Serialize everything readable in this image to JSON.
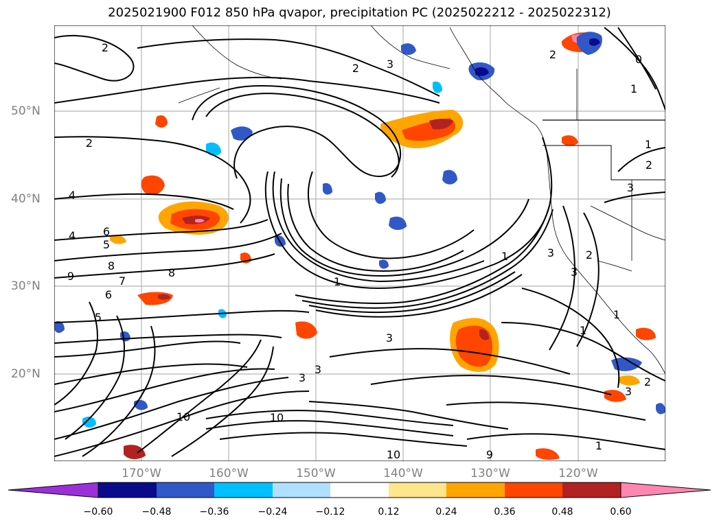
{
  "title": "2025021900 F012 850 hPa qvapor, precipitation PC (2025022212 - 2025022312)",
  "map": {
    "lat_labels": [
      "50°N",
      "40°N",
      "30°N",
      "20°N"
    ],
    "lon_labels": [
      "170°W",
      "160°W",
      "150°W",
      "140°W",
      "130°W",
      "120°W"
    ],
    "contour_labels": [
      "2",
      "3",
      "2",
      "2",
      "4",
      "6",
      "5",
      "4",
      "8",
      "9",
      "7",
      "8",
      "6",
      "5",
      "1",
      "1",
      "3",
      "1",
      "1",
      "2",
      "3",
      "3",
      "3",
      "3",
      "10",
      "10",
      "10",
      "9",
      "1",
      "2",
      "0",
      "1",
      "1",
      "2",
      "3",
      "3",
      "2"
    ],
    "colors": {
      "purple": "#9b30d9",
      "navy": "#0a0a8c",
      "blue": "#3158c8",
      "sky": "#00bfff",
      "lightblue": "#b0e0ff",
      "white": "#ffffff",
      "yellow": "#ffe68c",
      "orange": "#ffa500",
      "redorange": "#ff4500",
      "firebrick": "#b22222",
      "pink": "#ff86b0"
    }
  },
  "colorbar": {
    "ticks": [
      "−0.60",
      "−0.48",
      "−0.36",
      "−0.24",
      "−0.12",
      "0.12",
      "0.24",
      "0.36",
      "0.48",
      "0.60"
    ],
    "bins": [
      "purple",
      "navy",
      "blue",
      "sky",
      "lightblue",
      "white",
      "yellow",
      "orange",
      "redorange",
      "firebrick",
      "pink"
    ]
  }
}
